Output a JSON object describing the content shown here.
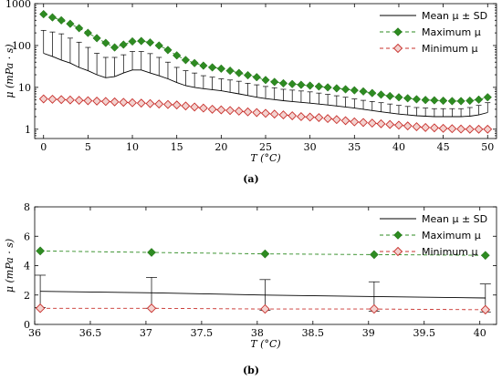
{
  "chart_data": [
    {
      "panel": "(a)",
      "type": "line",
      "yscale": "log",
      "xlabel": "T (°C)",
      "ylabel": "μ (mPa · s)",
      "xlim": [
        -1,
        51
      ],
      "ylim": [
        0.6,
        1000
      ],
      "xticks": [
        0,
        5,
        10,
        15,
        20,
        25,
        30,
        35,
        40,
        45,
        50
      ],
      "yticks": [
        1,
        10,
        100,
        1000
      ],
      "x": [
        0,
        1,
        2,
        3,
        4,
        5,
        6,
        7,
        8,
        9,
        10,
        11,
        12,
        13,
        14,
        15,
        16,
        17,
        18,
        19,
        20,
        21,
        22,
        23,
        24,
        25,
        26,
        27,
        28,
        29,
        30,
        31,
        32,
        33,
        34,
        35,
        36,
        37,
        38,
        39,
        40,
        41,
        42,
        43,
        44,
        45,
        46,
        47,
        48,
        49,
        50
      ],
      "series": [
        {
          "name": "Mean μ ± SD",
          "style": "solid",
          "color": "#000000",
          "values": [
            65,
            55,
            45,
            38,
            30,
            25,
            20,
            17,
            18,
            22,
            26,
            26,
            22,
            19,
            16,
            13,
            11,
            10,
            9.3,
            8.8,
            8.3,
            7.6,
            7,
            6.4,
            5.8,
            5.4,
            5.1,
            4.8,
            4.6,
            4.4,
            4.2,
            4,
            3.8,
            3.6,
            3.4,
            3.2,
            3,
            2.8,
            2.6,
            2.45,
            2.3,
            2.2,
            2.1,
            2.05,
            2,
            2,
            2,
            2,
            2.05,
            2.2,
            2.5
          ],
          "error_upper": [
            230,
            210,
            190,
            150,
            120,
            90,
            65,
            52,
            52,
            60,
            72,
            72,
            64,
            52,
            40,
            30,
            25,
            22,
            19,
            17.5,
            16,
            15,
            14,
            12.5,
            11.5,
            10.5,
            9.8,
            9,
            8.6,
            8.2,
            7.8,
            7.3,
            6.8,
            6.3,
            5.8,
            5.3,
            4.9,
            4.6,
            4.3,
            4,
            3.7,
            3.5,
            3.3,
            3.2,
            3.1,
            3.1,
            3.1,
            3.1,
            3.3,
            3.7,
            4.3
          ]
        },
        {
          "name": "Maximum μ",
          "style": "dashed",
          "color": "#2e8b22",
          "marker": "filled-diamond",
          "values": [
            560,
            470,
            400,
            330,
            260,
            200,
            150,
            115,
            90,
            105,
            125,
            128,
            118,
            100,
            78,
            58,
            45,
            38,
            33,
            30,
            28,
            25,
            22,
            19.5,
            17.5,
            15,
            13.5,
            12.5,
            12,
            11.5,
            11,
            10.5,
            10,
            9.5,
            9,
            8.5,
            8,
            7.3,
            6.7,
            6.2,
            5.8,
            5.5,
            5.2,
            5,
            4.9,
            4.8,
            4.7,
            4.7,
            4.8,
            5.1,
            5.8
          ]
        },
        {
          "name": "Minimum μ",
          "style": "dashed",
          "color": "#c8302c",
          "marker": "open-diamond",
          "values": [
            5.3,
            5.2,
            5.1,
            5,
            4.9,
            4.8,
            4.7,
            4.6,
            4.5,
            4.4,
            4.3,
            4.2,
            4.1,
            4,
            3.9,
            3.8,
            3.6,
            3.4,
            3.2,
            3,
            2.9,
            2.8,
            2.7,
            2.6,
            2.5,
            2.4,
            2.3,
            2.2,
            2.1,
            2,
            1.95,
            1.9,
            1.8,
            1.7,
            1.6,
            1.5,
            1.45,
            1.4,
            1.35,
            1.3,
            1.25,
            1.2,
            1.15,
            1.1,
            1.08,
            1.05,
            1.03,
            1.01,
            1,
            1,
            1
          ]
        }
      ]
    },
    {
      "panel": "(b)",
      "type": "line",
      "xlabel": "T (°C)",
      "ylabel": "μ (mPa · s)",
      "xlim": [
        36,
        40.15
      ],
      "ylim": [
        0,
        8
      ],
      "xticks": [
        36,
        36.5,
        37,
        37.5,
        38,
        38.5,
        39,
        39.5,
        40
      ],
      "xtick_labels": [
        "36",
        "36.5",
        "37",
        "37.5",
        "38",
        "38.5",
        "39",
        "39.5",
        "40"
      ],
      "yticks": [
        0,
        2,
        4,
        6,
        8
      ],
      "x": [
        36.05,
        37.05,
        38.07,
        39.05,
        40.05
      ],
      "series": [
        {
          "name": "Mean μ ± SD",
          "style": "solid",
          "color": "#000000",
          "values": [
            2.25,
            2.15,
            2.0,
            1.9,
            1.8
          ],
          "error_upper": [
            3.35,
            3.2,
            3.05,
            2.9,
            2.75
          ],
          "error_lower": [
            1.15,
            1.1,
            0.95,
            0.9,
            0.85
          ]
        },
        {
          "name": "Maximum μ",
          "style": "dashed",
          "color": "#2e8b22",
          "marker": "filled-diamond",
          "values": [
            5.0,
            4.9,
            4.8,
            4.75,
            4.7
          ]
        },
        {
          "name": "Minimum μ",
          "style": "dashed",
          "color": "#c8302c",
          "marker": "open-diamond",
          "values": [
            1.1,
            1.1,
            1.05,
            1.05,
            1.0
          ]
        }
      ]
    }
  ]
}
